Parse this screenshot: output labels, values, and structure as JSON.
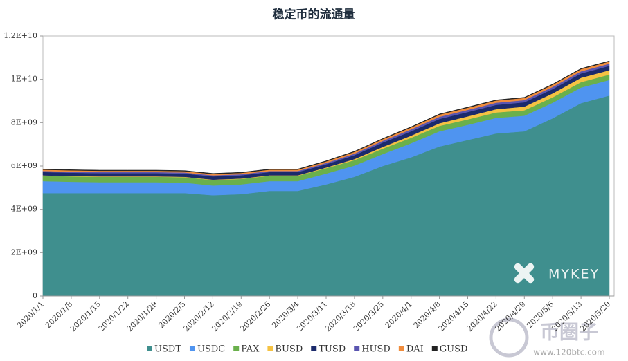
{
  "chart_data": {
    "type": "stacked-area",
    "title": "稳定币的流通量",
    "categories": [
      "2020/1/1",
      "2020/1/8",
      "2020/1/15",
      "2020/1/22",
      "2020/1/29",
      "2020/2/5",
      "2020/2/12",
      "2020/2/19",
      "2020/2/26",
      "2020/3/4",
      "2020/3/11",
      "2020/3/18",
      "2020/3/25",
      "2020/4/1",
      "2020/4/8",
      "2020/4/15",
      "2020/4/22",
      "2020/4/29",
      "2020/5/6",
      "2020/5/13",
      "2020/5/20"
    ],
    "series": [
      {
        "name": "USDT",
        "color": "#3f8f8e",
        "values": [
          4750000000,
          4750000000,
          4750000000,
          4750000000,
          4750000000,
          4750000000,
          4650000000,
          4700000000,
          4850000000,
          4850000000,
          5150000000,
          5500000000,
          6000000000,
          6400000000,
          6900000000,
          7200000000,
          7500000000,
          7600000000,
          8200000000,
          8900000000,
          9250000000
        ]
      },
      {
        "name": "USDC",
        "color": "#4f94f0",
        "values": [
          550000000,
          520000000,
          500000000,
          500000000,
          500000000,
          480000000,
          450000000,
          450000000,
          450000000,
          450000000,
          500000000,
          520000000,
          550000000,
          650000000,
          700000000,
          700000000,
          720000000,
          720000000,
          720000000,
          720000000,
          720000000
        ]
      },
      {
        "name": "PAX",
        "color": "#6ab04c",
        "values": [
          250000000,
          250000000,
          250000000,
          250000000,
          250000000,
          250000000,
          250000000,
          250000000,
          250000000,
          250000000,
          250000000,
          250000000,
          250000000,
          250000000,
          250000000,
          250000000,
          250000000,
          250000000,
          250000000,
          250000000,
          250000000
        ]
      },
      {
        "name": "BUSD",
        "color": "#f5c242",
        "values": [
          20000000,
          20000000,
          20000000,
          20000000,
          20000000,
          20000000,
          20000000,
          20000000,
          20000000,
          20000000,
          30000000,
          50000000,
          80000000,
          100000000,
          120000000,
          140000000,
          150000000,
          170000000,
          180000000,
          200000000,
          200000000
        ]
      },
      {
        "name": "TUSD",
        "color": "#1b2a6b",
        "values": [
          150000000,
          150000000,
          150000000,
          150000000,
          150000000,
          150000000,
          150000000,
          150000000,
          150000000,
          150000000,
          150000000,
          180000000,
          200000000,
          200000000,
          200000000,
          200000000,
          200000000,
          200000000,
          200000000,
          200000000,
          200000000
        ]
      },
      {
        "name": "HUSD",
        "color": "#5a55b0",
        "values": [
          50000000,
          50000000,
          50000000,
          50000000,
          50000000,
          50000000,
          50000000,
          50000000,
          50000000,
          50000000,
          60000000,
          70000000,
          80000000,
          90000000,
          100000000,
          100000000,
          100000000,
          100000000,
          100000000,
          100000000,
          100000000
        ]
      },
      {
        "name": "DAI",
        "color": "#f08c3c",
        "values": [
          60000000,
          60000000,
          60000000,
          60000000,
          60000000,
          60000000,
          60000000,
          60000000,
          60000000,
          60000000,
          70000000,
          80000000,
          80000000,
          90000000,
          100000000,
          100000000,
          100000000,
          100000000,
          100000000,
          100000000,
          100000000
        ]
      },
      {
        "name": "GUSD",
        "color": "#222222",
        "values": [
          30000000,
          30000000,
          30000000,
          30000000,
          30000000,
          30000000,
          30000000,
          30000000,
          30000000,
          30000000,
          30000000,
          30000000,
          30000000,
          30000000,
          30000000,
          30000000,
          30000000,
          30000000,
          30000000,
          30000000,
          30000000
        ]
      }
    ],
    "ylim": [
      0,
      12000000000
    ],
    "yticks": [
      0,
      {
        "value": 2000000000,
        "label": "2E+09"
      },
      {
        "value": 4000000000,
        "label": "4E+09"
      },
      {
        "value": 6000000000,
        "label": "6E+09"
      },
      {
        "value": 8000000000,
        "label": "8E+09"
      },
      {
        "value": 10000000000,
        "label": "1E+10"
      },
      {
        "value": 12000000000,
        "label": "1.2E+10"
      }
    ],
    "watermark": "MYKEY",
    "site_mark": "币圈子",
    "site_url": "www.120btc.com"
  }
}
